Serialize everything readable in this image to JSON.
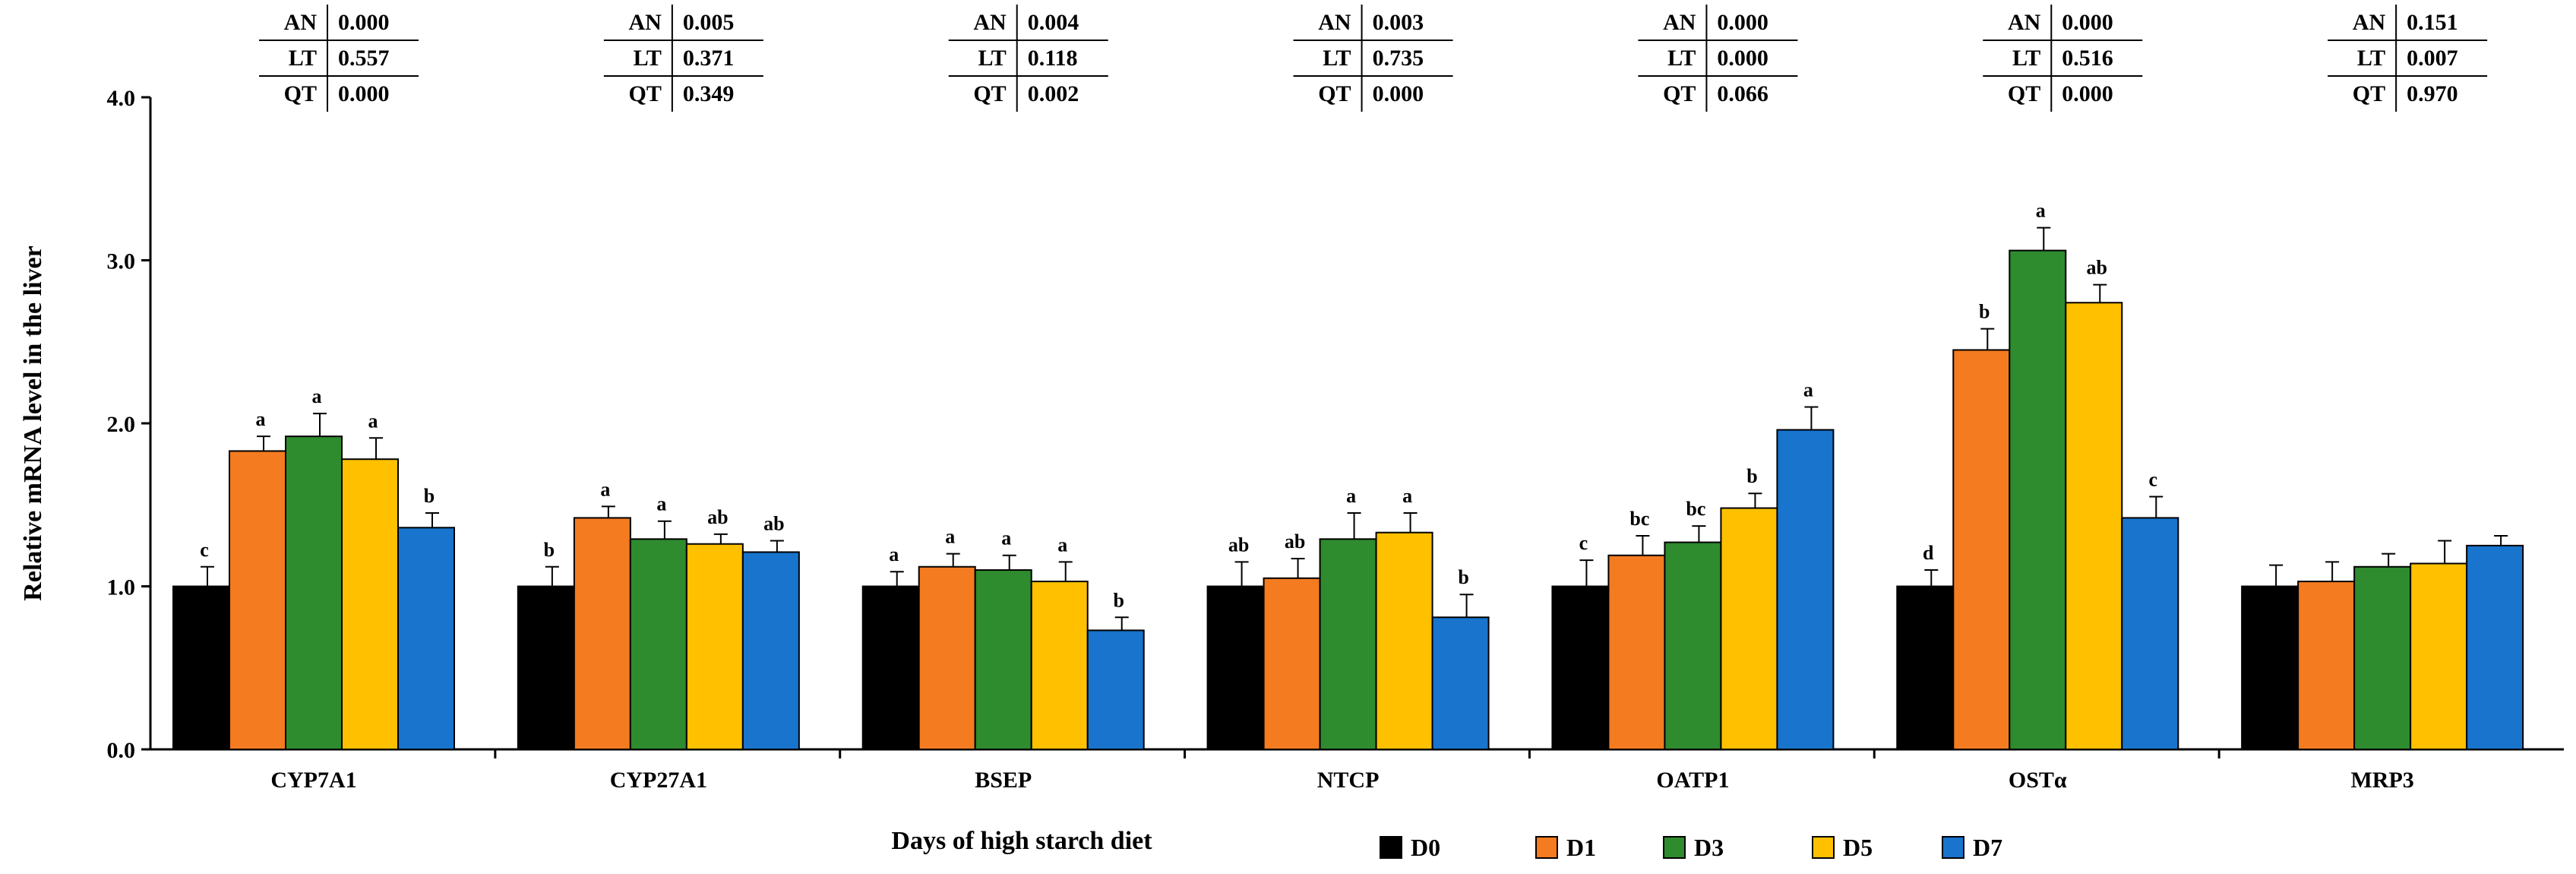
{
  "chart_data": {
    "type": "bar",
    "ylabel": "Relative mRNA level  in the liver",
    "xlabel": "Days of high starch diet",
    "ylim": [
      0,
      4.0
    ],
    "yticks": [
      "0.0",
      "1.0",
      "2.0",
      "3.0",
      "4.0"
    ],
    "yticks_values": [
      0,
      1,
      2,
      3,
      4
    ],
    "legend_position": "bottom-center",
    "categories": [
      "CYP7A1",
      "CYP27A1",
      "BSEP",
      "NTCP",
      "OATP1",
      "OSTα",
      "MRP3"
    ],
    "series": [
      {
        "name": "D0",
        "color": "#000000",
        "values": [
          1.0,
          1.0,
          1.0,
          1.0,
          1.0,
          1.0,
          1.0
        ],
        "errors": [
          0.12,
          0.12,
          0.09,
          0.15,
          0.16,
          0.1,
          0.13
        ],
        "letters": [
          "c",
          "b",
          "a",
          "ab",
          "c",
          "d",
          ""
        ]
      },
      {
        "name": "D1",
        "color": "#F47B20",
        "values": [
          1.83,
          1.42,
          1.12,
          1.05,
          1.19,
          2.45,
          1.03
        ],
        "errors": [
          0.09,
          0.07,
          0.08,
          0.12,
          0.12,
          0.13,
          0.12
        ],
        "letters": [
          "a",
          "a",
          "a",
          "ab",
          "bc",
          "b",
          ""
        ]
      },
      {
        "name": "D3",
        "color": "#2E8B2E",
        "values": [
          1.92,
          1.29,
          1.1,
          1.29,
          1.27,
          3.06,
          1.12
        ],
        "errors": [
          0.14,
          0.11,
          0.09,
          0.16,
          0.1,
          0.14,
          0.08
        ],
        "letters": [
          "a",
          "a",
          "a",
          "a",
          "bc",
          "a",
          ""
        ]
      },
      {
        "name": "D5",
        "color": "#FFC000",
        "values": [
          1.78,
          1.26,
          1.03,
          1.33,
          1.48,
          2.74,
          1.14
        ],
        "errors": [
          0.13,
          0.06,
          0.12,
          0.12,
          0.09,
          0.11,
          0.14
        ],
        "letters": [
          "a",
          "ab",
          "a",
          "a",
          "b",
          "ab",
          ""
        ]
      },
      {
        "name": "D7",
        "color": "#1874CD",
        "values": [
          1.36,
          1.21,
          0.73,
          0.81,
          1.96,
          1.42,
          1.25
        ],
        "errors": [
          0.09,
          0.07,
          0.08,
          0.14,
          0.14,
          0.13,
          0.06
        ],
        "letters": [
          "b",
          "ab",
          "b",
          "b",
          "a",
          "c",
          ""
        ]
      }
    ],
    "stats_tables": [
      {
        "AN": "0.000",
        "LT": "0.557",
        "QT": "0.000"
      },
      {
        "AN": "0.005",
        "LT": "0.371",
        "QT": "0.349"
      },
      {
        "AN": "0.004",
        "LT": "0.118",
        "QT": "0.002"
      },
      {
        "AN": "0.003",
        "LT": "0.735",
        "QT": "0.000"
      },
      {
        "AN": "0.000",
        "LT": "0.000",
        "QT": "0.066"
      },
      {
        "AN": "0.000",
        "LT": "0.516",
        "QT": "0.000"
      },
      {
        "AN": "0.151",
        "LT": "0.007",
        "QT": "0.970"
      }
    ],
    "stats_labels": [
      "AN",
      "LT",
      "QT"
    ]
  }
}
